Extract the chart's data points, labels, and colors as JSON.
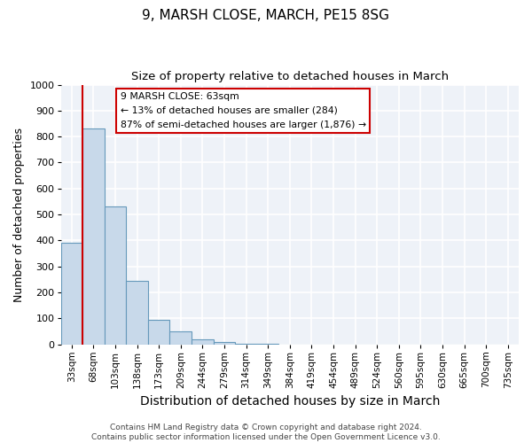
{
  "title1": "9, MARSH CLOSE, MARCH, PE15 8SG",
  "title2": "Size of property relative to detached houses in March",
  "xlabel": "Distribution of detached houses by size in March",
  "ylabel": "Number of detached properties",
  "categories": [
    "33sqm",
    "68sqm",
    "103sqm",
    "138sqm",
    "173sqm",
    "209sqm",
    "244sqm",
    "279sqm",
    "314sqm",
    "349sqm",
    "384sqm",
    "419sqm",
    "454sqm",
    "489sqm",
    "524sqm",
    "560sqm",
    "595sqm",
    "630sqm",
    "665sqm",
    "700sqm",
    "735sqm"
  ],
  "bar_values": [
    390,
    830,
    530,
    245,
    95,
    50,
    20,
    8,
    3,
    1,
    0,
    0,
    0,
    0,
    0,
    0,
    0,
    0,
    0,
    0,
    0
  ],
  "bar_color": "#c8d9ea",
  "bar_edge_color": "#6699bb",
  "ylim": [
    0,
    1000
  ],
  "yticks": [
    0,
    100,
    200,
    300,
    400,
    500,
    600,
    700,
    800,
    900,
    1000
  ],
  "property_line_color": "#cc0000",
  "annotation_text_line1": "9 MARSH CLOSE: 63sqm",
  "annotation_text_line2": "← 13% of detached houses are smaller (284)",
  "annotation_text_line3": "87% of semi-detached houses are larger (1,876) →",
  "annotation_box_edge_color": "#cc0000",
  "footer_text": "Contains HM Land Registry data © Crown copyright and database right 2024.\nContains public sector information licensed under the Open Government Licence v3.0.",
  "background_color": "#eef2f8",
  "grid_color": "#ffffff",
  "title1_fontsize": 11,
  "title2_fontsize": 9.5,
  "xlabel_fontsize": 10,
  "ylabel_fontsize": 9,
  "tick_fontsize": 7.5,
  "footer_fontsize": 6.5
}
